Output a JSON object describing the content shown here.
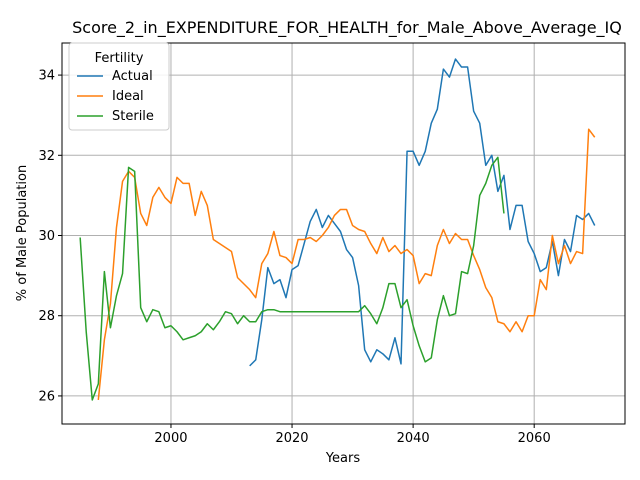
{
  "chart_data": {
    "type": "line",
    "title": "Score_2_in_EXPENDITURE_FOR_HEALTH_for_Male_Above_Average_IQ",
    "xlabel": "Years",
    "ylabel": "% of Male Population",
    "xlim": [
      1982,
      2075
    ],
    "ylim": [
      25.3,
      34.8
    ],
    "xticks": [
      2000,
      2020,
      2040,
      2060
    ],
    "yticks": [
      26,
      28,
      30,
      32,
      34
    ],
    "grid": true,
    "legend": {
      "title": "Fertility",
      "placement": "top-left"
    },
    "series": [
      {
        "name": "Actual",
        "color": "#1f77b4",
        "x": [
          2013,
          2014,
          2015,
          2016,
          2017,
          2018,
          2019,
          2020,
          2021,
          2022,
          2023,
          2024,
          2025,
          2026,
          2027,
          2028,
          2029,
          2030,
          2031,
          2032,
          2033,
          2034,
          2035,
          2036,
          2037,
          2038,
          2039,
          2040,
          2041,
          2042,
          2043,
          2044,
          2045,
          2046,
          2047,
          2048,
          2049,
          2050,
          2051,
          2052,
          2053,
          2054,
          2055,
          2056,
          2057,
          2058,
          2059,
          2060,
          2061,
          2062,
          2063,
          2064,
          2065,
          2066,
          2067,
          2068,
          2069,
          2070
        ],
        "y": [
          26.75,
          26.9,
          27.9,
          29.2,
          28.8,
          28.9,
          28.45,
          29.15,
          29.25,
          29.8,
          30.35,
          30.65,
          30.2,
          30.5,
          30.3,
          30.1,
          29.65,
          29.45,
          28.75,
          27.15,
          26.85,
          27.15,
          27.05,
          26.9,
          27.45,
          26.8,
          32.1,
          32.1,
          31.75,
          32.1,
          32.8,
          33.15,
          34.15,
          33.95,
          34.4,
          34.2,
          34.2,
          33.1,
          32.8,
          31.75,
          32.0,
          31.1,
          31.5,
          30.15,
          30.75,
          30.75,
          29.85,
          29.55,
          29.1,
          29.2,
          29.85,
          29.0,
          29.9,
          29.6,
          30.5,
          30.4,
          30.55,
          30.25
        ]
      },
      {
        "name": "Ideal",
        "color": "#ff7f0e",
        "x": [
          1988,
          1989,
          1990,
          1991,
          1992,
          1993,
          1994,
          1995,
          1996,
          1997,
          1998,
          1999,
          2000,
          2001,
          2002,
          2003,
          2004,
          2005,
          2006,
          2007,
          2008,
          2009,
          2010,
          2011,
          2012,
          2013,
          2014,
          2015,
          2016,
          2017,
          2018,
          2019,
          2020,
          2021,
          2022,
          2023,
          2024,
          2025,
          2026,
          2027,
          2028,
          2029,
          2030,
          2031,
          2032,
          2033,
          2034,
          2035,
          2036,
          2037,
          2038,
          2039,
          2040,
          2041,
          2042,
          2043,
          2044,
          2045,
          2046,
          2047,
          2048,
          2049,
          2050,
          2051,
          2052,
          2053,
          2054,
          2055,
          2056,
          2057,
          2058,
          2059,
          2060,
          2061,
          2062,
          2063,
          2064,
          2065,
          2066,
          2067,
          2068,
          2069,
          2070
        ],
        "y": [
          25.9,
          27.4,
          28.3,
          30.2,
          31.35,
          31.6,
          31.45,
          30.55,
          30.25,
          30.95,
          31.2,
          30.95,
          30.8,
          31.45,
          31.3,
          31.3,
          30.5,
          31.1,
          30.75,
          29.9,
          29.8,
          29.7,
          29.6,
          28.95,
          28.8,
          28.65,
          28.45,
          29.3,
          29.55,
          30.1,
          29.5,
          29.45,
          29.3,
          29.9,
          29.9,
          29.95,
          29.85,
          30.0,
          30.2,
          30.5,
          30.65,
          30.65,
          30.25,
          30.15,
          30.1,
          29.8,
          29.55,
          29.95,
          29.6,
          29.75,
          29.55,
          29.65,
          29.5,
          28.8,
          29.05,
          29.0,
          29.75,
          30.15,
          29.8,
          30.05,
          29.9,
          29.9,
          29.5,
          29.15,
          28.7,
          28.45,
          27.85,
          27.8,
          27.6,
          27.85,
          27.6,
          28.0,
          28.0,
          28.9,
          28.65,
          30.0,
          29.3,
          29.75,
          29.3,
          29.6,
          29.55,
          32.65,
          32.45
        ]
      },
      {
        "name": "Sterile",
        "color": "#2ca02c",
        "x": [
          1985,
          1986,
          1987,
          1988,
          1989,
          1990,
          1991,
          1992,
          1993,
          1994,
          1995,
          1996,
          1997,
          1998,
          1999,
          2000,
          2001,
          2002,
          2003,
          2004,
          2005,
          2006,
          2007,
          2008,
          2009,
          2010,
          2011,
          2012,
          2013,
          2014,
          2015,
          2016,
          2017,
          2018,
          2019,
          2020,
          2021,
          2022,
          2023,
          2024,
          2025,
          2026,
          2027,
          2028,
          2029,
          2030,
          2031,
          2032,
          2033,
          2034,
          2035,
          2036,
          2037,
          2038,
          2039,
          2040,
          2041,
          2042,
          2043,
          2044,
          2045,
          2046,
          2047,
          2048,
          2049,
          2050,
          2051,
          2052,
          2053,
          2054,
          2055
        ],
        "y": [
          29.95,
          27.6,
          25.9,
          26.3,
          29.1,
          27.7,
          28.5,
          29.05,
          31.7,
          31.6,
          28.2,
          27.85,
          28.15,
          28.1,
          27.7,
          27.75,
          27.6,
          27.4,
          27.45,
          27.5,
          27.6,
          27.8,
          27.65,
          27.85,
          28.1,
          28.05,
          27.8,
          28.0,
          27.85,
          27.85,
          28.1,
          28.15,
          28.15,
          28.1,
          28.1,
          28.1,
          28.1,
          28.1,
          28.1,
          28.1,
          28.1,
          28.1,
          28.1,
          28.1,
          28.1,
          28.1,
          28.1,
          28.25,
          28.05,
          27.8,
          28.2,
          28.8,
          28.8,
          28.2,
          28.4,
          27.75,
          27.25,
          26.85,
          26.95,
          27.9,
          28.5,
          28.0,
          28.05,
          29.1,
          29.05,
          29.75,
          31.0,
          31.3,
          31.75,
          31.95,
          30.55
        ]
      }
    ]
  }
}
